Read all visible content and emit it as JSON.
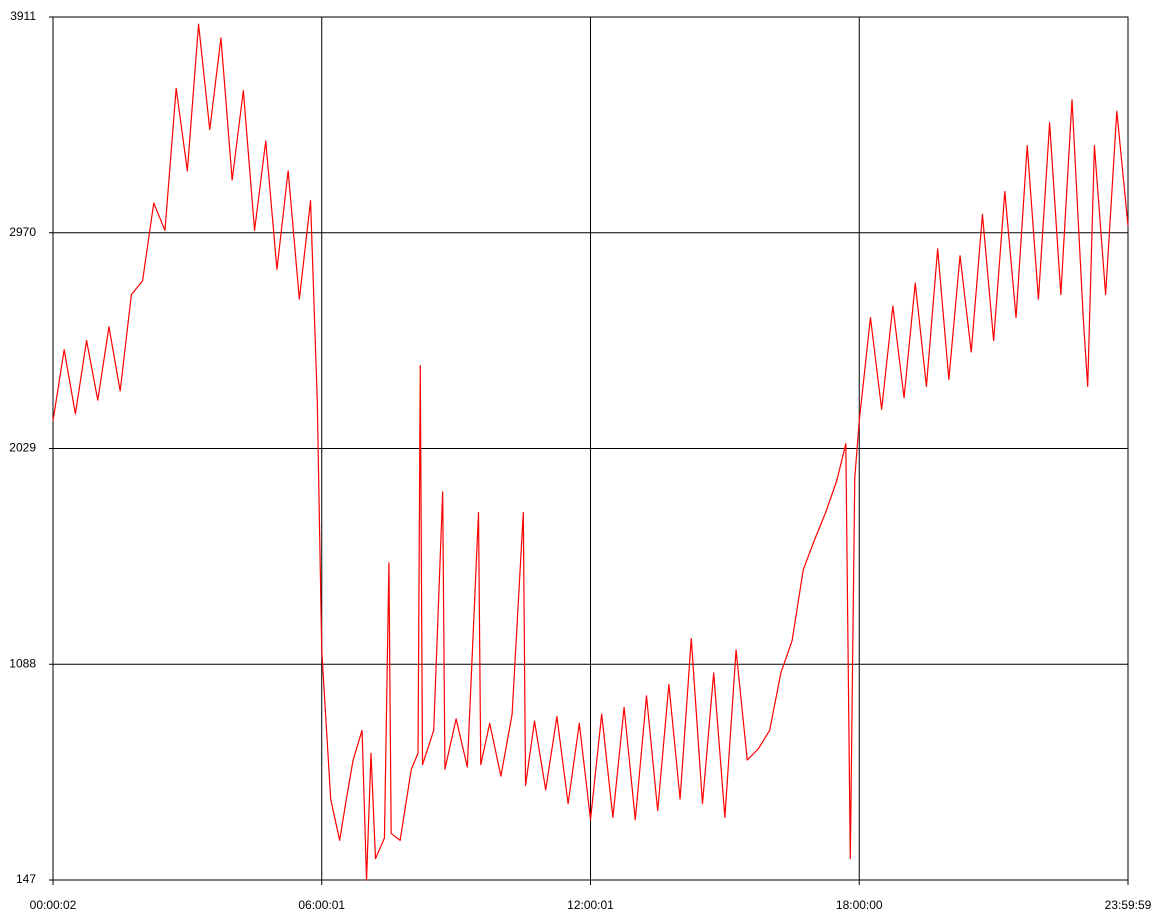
{
  "chart_data": {
    "type": "line",
    "x": [
      2,
      900,
      1800,
      2700,
      3600,
      4500,
      5400,
      6300,
      7200,
      8100,
      9000,
      9900,
      10800,
      11700,
      12600,
      13500,
      14400,
      15300,
      16200,
      17100,
      18000,
      18900,
      19800,
      20700,
      21240,
      21600,
      22320,
      23040,
      23580,
      24120,
      24840,
      25200,
      25560,
      25920,
      26640,
      27000,
      27180,
      27900,
      28800,
      29340,
      29520,
      29700,
      30600,
      31320,
      31500,
      32400,
      33300,
      34200,
      34380,
      35100,
      36000,
      36900,
      37800,
      37980,
      38700,
      39600,
      40500,
      41400,
      42300,
      43200,
      44100,
      45000,
      45900,
      46800,
      47700,
      48600,
      49500,
      50400,
      51300,
      52200,
      53100,
      54000,
      54900,
      55800,
      56700,
      57600,
      58500,
      59400,
      60300,
      61200,
      62100,
      63000,
      63720,
      64080,
      64440,
      64800,
      65700,
      66600,
      67500,
      68400,
      69300,
      70200,
      71100,
      72000,
      72900,
      73800,
      74700,
      75600,
      76500,
      77400,
      78300,
      79200,
      80100,
      81000,
      81900,
      82800,
      83160,
      83700,
      84600,
      85500,
      86399
    ],
    "series": [
      {
        "color": "#ff0000",
        "values": [
          2150,
          2460,
          2180,
          2500,
          2240,
          2560,
          2280,
          2700,
          2760,
          3100,
          2980,
          3600,
          3240,
          3880,
          3420,
          3820,
          3200,
          3590,
          2980,
          3370,
          2810,
          3240,
          2680,
          3110,
          2240,
          1150,
          500,
          320,
          500,
          670,
          800,
          147,
          700,
          240,
          330,
          1530,
          350,
          320,
          630,
          700,
          2390,
          650,
          800,
          1840,
          630,
          850,
          640,
          1750,
          650,
          830,
          600,
          870,
          1750,
          560,
          840,
          540,
          860,
          480,
          830,
          410,
          870,
          420,
          900,
          410,
          950,
          450,
          1000,
          500,
          1200,
          480,
          1050,
          420,
          1150,
          670,
          720,
          800,
          1050,
          1190,
          1500,
          1630,
          1750,
          1890,
          2050,
          240,
          1900,
          2150,
          2600,
          2200,
          2650,
          2250,
          2750,
          2300,
          2900,
          2330,
          2870,
          2450,
          3050,
          2500,
          3150,
          2600,
          3350,
          2680,
          3450,
          2700,
          3550,
          2600,
          2300,
          3350,
          2700,
          3500,
          3000
        ]
      }
    ],
    "xlim": [
      2,
      86399
    ],
    "xticks": [
      {
        "value": 2,
        "label": "00:00:02"
      },
      {
        "value": 21601,
        "label": "06:00:01"
      },
      {
        "value": 43201,
        "label": "12:00:01"
      },
      {
        "value": 64800,
        "label": "18:00:00"
      },
      {
        "value": 86399,
        "label": "23:59:59"
      }
    ],
    "ylim": [
      147,
      3911
    ],
    "yticks": [
      147,
      1088,
      2029,
      2970,
      3911
    ],
    "grid": true
  }
}
